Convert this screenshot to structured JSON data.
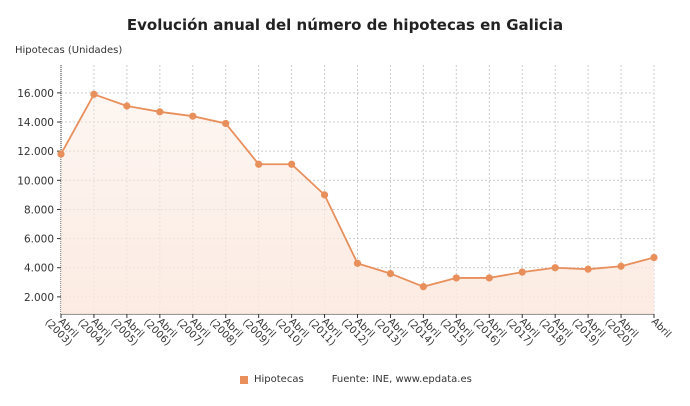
{
  "chart_data": {
    "type": "line",
    "title": "Evolución anual del número de hipotecas en Galicia",
    "ylabel": "Hipotecas (Unidades)",
    "xlabel": "",
    "categories": [
      "Abril (2003)",
      "Abril (2004)",
      "Abril (2005)",
      "Abril (2006)",
      "Abril (2007)",
      "Abril (2008)",
      "Abril (2009)",
      "Abril (2010)",
      "Abril (2011)",
      "Abril (2012)",
      "Abril (2013)",
      "Abril (2014)",
      "Abril (2015)",
      "Abril (2016)",
      "Abril (2017)",
      "Abril (2018)",
      "Abril (2019)",
      "Abril (2020)",
      "Abril"
    ],
    "series": [
      {
        "name": "Hipotecas",
        "color": "#e88f5c",
        "values": [
          11800,
          15900,
          15100,
          14700,
          14400,
          13900,
          11100,
          11100,
          9000,
          4300,
          3600,
          2700,
          3300,
          3300,
          3700,
          4000,
          3900,
          4100,
          4700
        ]
      }
    ],
    "yticks": [
      "2.000",
      "4.000",
      "6.000",
      "8.000",
      "10.000",
      "12.000",
      "14.000",
      "16.000"
    ],
    "ytick_values": [
      2000,
      4000,
      6000,
      8000,
      10000,
      12000,
      14000,
      16000
    ],
    "ylim": [
      0,
      17500
    ],
    "grid": true,
    "legend": "bottom"
  },
  "source": "Fuente: INE, www.epdata.es"
}
